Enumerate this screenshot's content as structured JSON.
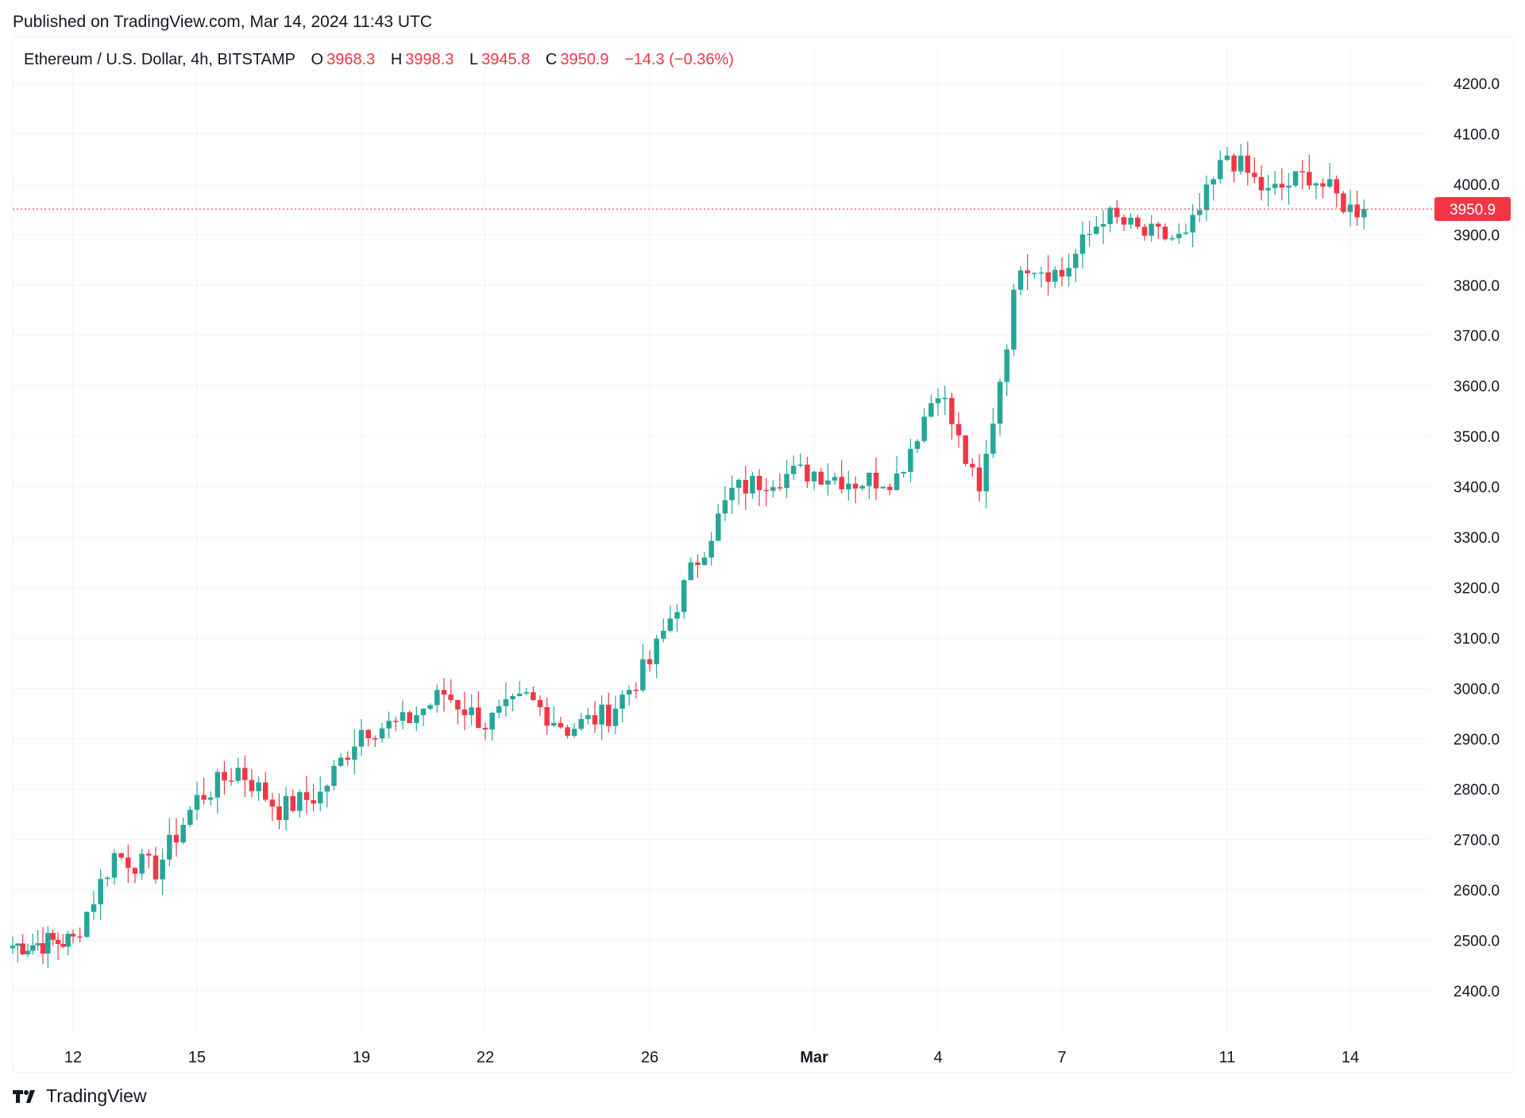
{
  "header": {
    "published": "Published on TradingView.com, Mar 14, 2024 11:43 UTC"
  },
  "legend": {
    "symbol": "Ethereum / U.S. Dollar, 4h, BITSTAMP",
    "o_key": "O",
    "o_val": "3968.3",
    "h_key": "H",
    "h_val": "3998.3",
    "l_key": "L",
    "l_val": "3945.8",
    "c_key": "C",
    "c_val": "3950.9",
    "change": "−14.3 (−0.36%)"
  },
  "footer": {
    "brand": "TradingView",
    "logo_icon": "tradingview-logo-icon"
  },
  "colors": {
    "up": "#26a69a",
    "down": "#f23645",
    "grid": "#f0f3fa",
    "text": "#131722"
  },
  "chart_data": {
    "type": "candlestick",
    "series_name": "Ethereum / U.S. Dollar, 4h, BITSTAMP",
    "y_ticks": [
      "2400.0",
      "2500.0",
      "2600.0",
      "2700.0",
      "2800.0",
      "2900.0",
      "3000.0",
      "3100.0",
      "3200.0",
      "3300.0",
      "3400.0",
      "3500.0",
      "3600.0",
      "3700.0",
      "3800.0",
      "3900.0",
      "4000.0",
      "4100.0",
      "4200.0"
    ],
    "ylim": [
      2400,
      4200
    ],
    "x_ticks": [
      {
        "label": "12",
        "day": "2024-02-12"
      },
      {
        "label": "15",
        "day": "2024-02-15"
      },
      {
        "label": "19",
        "day": "2024-02-19"
      },
      {
        "label": "22",
        "day": "2024-02-22"
      },
      {
        "label": "26",
        "day": "2024-02-26"
      },
      {
        "label": "Mar",
        "day": "2024-03-01"
      },
      {
        "label": "4",
        "day": "2024-03-04"
      },
      {
        "label": "7",
        "day": "2024-03-07"
      },
      {
        "label": "11",
        "day": "2024-03-11"
      },
      {
        "label": "14",
        "day": "2024-03-14"
      }
    ],
    "last_price": "3950.9",
    "price_line": 3950.9,
    "key_closes": [
      {
        "date": "2024-02-10",
        "close": 2490
      },
      {
        "date": "2024-02-12",
        "close": 2500
      },
      {
        "date": "2024-02-13",
        "close": 2670
      },
      {
        "date": "2024-02-14",
        "close": 2640
      },
      {
        "date": "2024-02-15",
        "close": 2780
      },
      {
        "date": "2024-02-16",
        "close": 2840
      },
      {
        "date": "2024-02-17",
        "close": 2760
      },
      {
        "date": "2024-02-18",
        "close": 2790
      },
      {
        "date": "2024-02-19",
        "close": 2920
      },
      {
        "date": "2024-02-20",
        "close": 2930
      },
      {
        "date": "2024-02-21",
        "close": 2990
      },
      {
        "date": "2024-02-22",
        "close": 2930
      },
      {
        "date": "2024-02-23",
        "close": 2980
      },
      {
        "date": "2024-02-24",
        "close": 2920
      },
      {
        "date": "2024-02-25",
        "close": 2950
      },
      {
        "date": "2024-02-26",
        "close": 3050
      },
      {
        "date": "2024-02-27",
        "close": 3230
      },
      {
        "date": "2024-02-28",
        "close": 3390
      },
      {
        "date": "2024-02-29",
        "close": 3420
      },
      {
        "date": "2024-03-01",
        "close": 3430
      },
      {
        "date": "2024-03-02",
        "close": 3410
      },
      {
        "date": "2024-03-03",
        "close": 3420
      },
      {
        "date": "2024-03-04",
        "close": 3600
      },
      {
        "date": "2024-03-05",
        "close": 3380
      },
      {
        "date": "2024-03-06",
        "close": 3850
      },
      {
        "date": "2024-03-07",
        "close": 3820
      },
      {
        "date": "2024-03-08",
        "close": 3940
      },
      {
        "date": "2024-03-09",
        "close": 3900
      },
      {
        "date": "2024-03-10",
        "close": 3890
      },
      {
        "date": "2024-03-11",
        "close": 4060
      },
      {
        "date": "2024-03-12",
        "close": 3980
      },
      {
        "date": "2024-03-13",
        "close": 4020
      },
      {
        "date": "2024-03-14",
        "close": 3950.9
      }
    ],
    "grid": true
  }
}
